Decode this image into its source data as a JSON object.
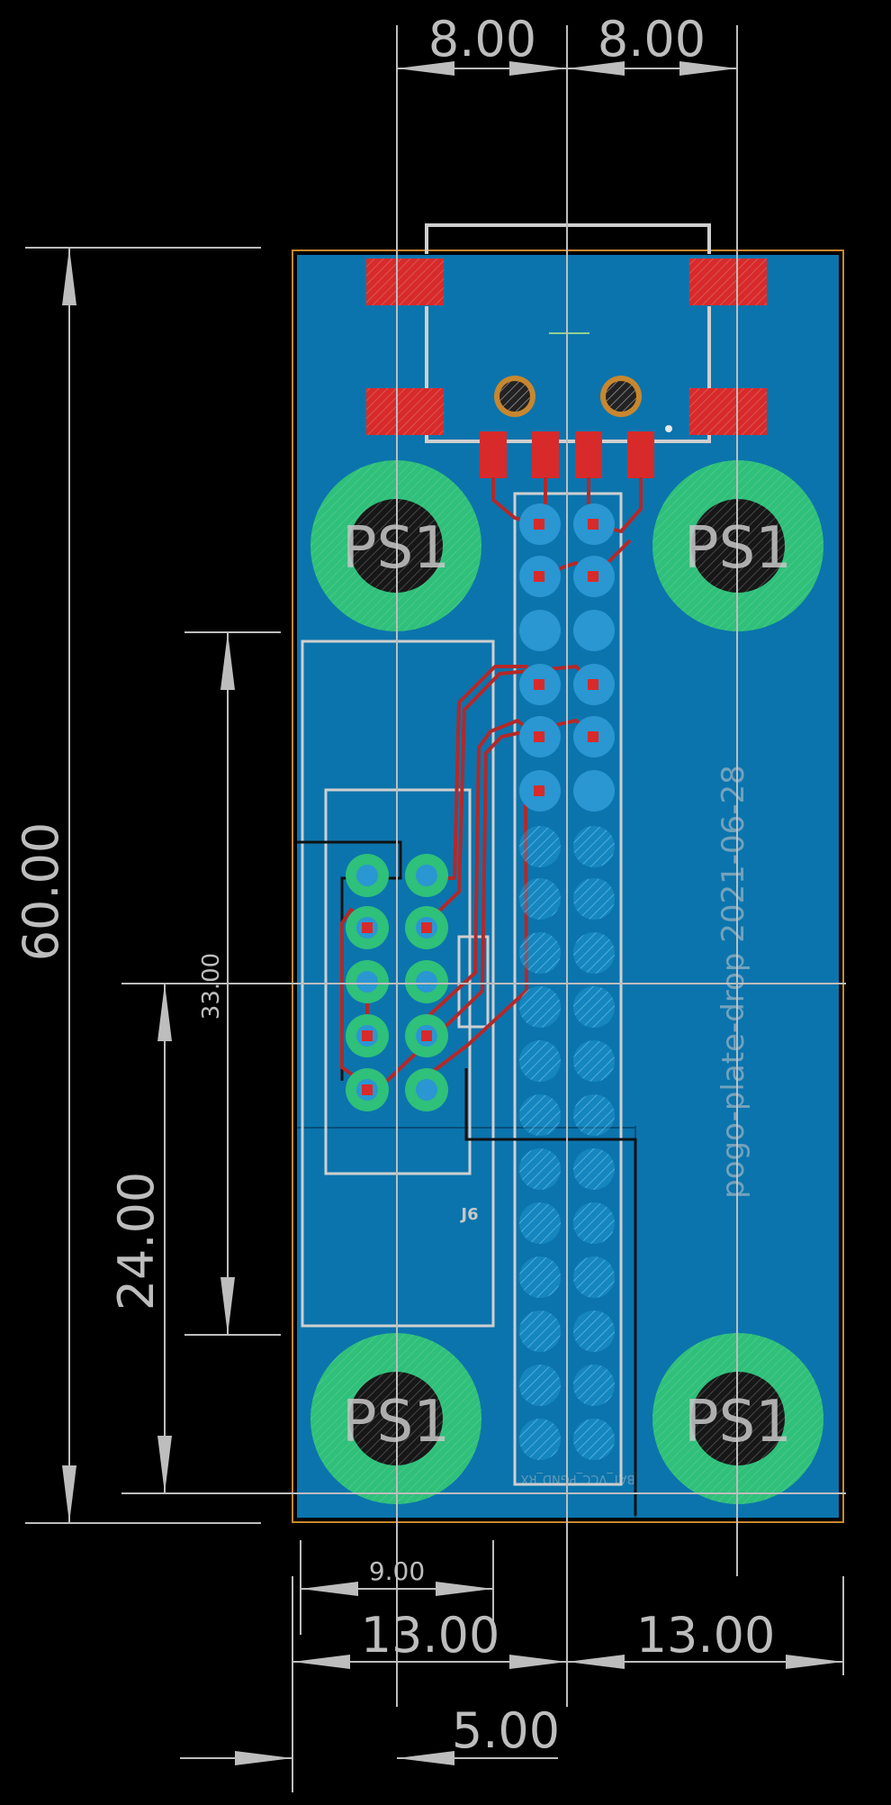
{
  "colors": {
    "background": "#000000",
    "board_fill": "#0b74ad",
    "board_outline": "#c8872e",
    "dimension_lines": "#bdbdbd",
    "silkscreen": "#cfcfcf",
    "pad_green": "#2fc07a",
    "hole_dark": "#171717",
    "smd_red": "#d82a2a",
    "trace_red": "#b52828",
    "via_blue": "#2a96d2"
  },
  "dimensions": {
    "top_left": "8.00",
    "top_right": "8.00",
    "height_total": "60.00",
    "height_mid": "33.00",
    "height_lower": "24.00",
    "bottom_small": "9.00",
    "bottom_left": "13.00",
    "bottom_right": "13.00",
    "bottom_offset": "5.00"
  },
  "labels": {
    "mount_1": "PS1",
    "mount_2": "PS1",
    "mount_3": "PS1",
    "mount_4": "PS1",
    "connector": "J6",
    "board_text": "pogo-plate-drop 2021-06-28",
    "header_text": "BAT_VCC_PGND_RX"
  }
}
